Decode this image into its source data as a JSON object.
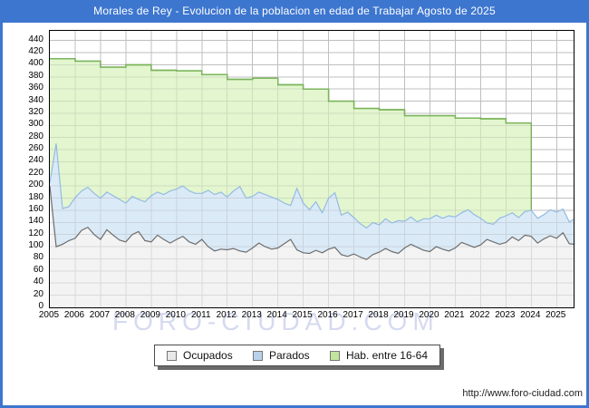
{
  "window": {
    "title": "Morales de Rey - Evolucion de la poblacion en edad de Trabajar Agosto de 2025"
  },
  "watermark_text": "FORO-CIUDAD.COM",
  "footer_url": "http://www.foro-ciudad.com",
  "colors": {
    "frame_blue": "#3d76cf",
    "plot_border": "#000000",
    "grid": "#cfcfcf",
    "hab_fill": "#e3f6cf",
    "hab_line": "#7ab45a",
    "parados_fill": "#dbeaf7",
    "parados_line": "#94bbe2",
    "ocupados_fill": "#f3f3f3",
    "ocupados_line": "#6e6e6e",
    "watermark": "#bbc3e6"
  },
  "legend": {
    "items": [
      {
        "label": "Ocupados",
        "swatch": "#e9e9e9",
        "swatch_border": "#777777"
      },
      {
        "label": "Parados",
        "swatch": "#b8d2ec",
        "swatch_border": "#777777"
      },
      {
        "label": "Hab. entre 16-64",
        "swatch": "#c2e59d",
        "swatch_border": "#777777"
      }
    ]
  },
  "chart_data": {
    "type": "area",
    "title": "Morales de Rey - Evolucion de la poblacion en edad de Trabajar Agosto de 2025",
    "xlabel": "",
    "ylabel": "",
    "x_range": [
      2005,
      2025.67
    ],
    "y_range": [
      0,
      456
    ],
    "x_ticks": [
      2005,
      2006,
      2007,
      2008,
      2009,
      2010,
      2011,
      2012,
      2013,
      2014,
      2015,
      2016,
      2017,
      2018,
      2019,
      2020,
      2021,
      2022,
      2023,
      2024,
      2025
    ],
    "y_ticks": [
      0,
      20,
      40,
      60,
      80,
      100,
      120,
      140,
      160,
      180,
      200,
      220,
      240,
      260,
      280,
      300,
      320,
      340,
      360,
      380,
      400,
      420,
      440
    ],
    "grid": true,
    "legend_position": "bottom-center",
    "x_start": 2005.0,
    "x_step": 0.25,
    "x_last": 2025.67,
    "resolution_note": "values estimated from plot at quarterly resolution; source curve is monthly",
    "series": [
      {
        "name": "Hab. entre 16-64",
        "type": "step-area",
        "years": [
          2005,
          2006,
          2007,
          2008,
          2009,
          2010,
          2011,
          2012,
          2013,
          2014,
          2015,
          2016,
          2017,
          2018,
          2019,
          2020,
          2021,
          2022,
          2023
        ],
        "values": [
          410,
          406,
          396,
          400,
          391,
          390,
          384,
          376,
          378,
          367,
          360,
          340,
          328,
          326,
          316,
          316,
          312,
          311,
          304
        ],
        "drops_to_zero_at": 2024.0,
        "fill": "#e3f6cf",
        "line": "#7ab45a"
      },
      {
        "name": "Ocupados",
        "type": "area",
        "values": [
          200,
          100,
          104,
          110,
          114,
          127,
          132,
          120,
          112,
          128,
          119,
          111,
          108,
          120,
          125,
          110,
          108,
          119,
          112,
          106,
          112,
          117,
          108,
          104,
          112,
          100,
          93,
          96,
          95,
          97,
          93,
          91,
          98,
          106,
          100,
          96,
          98,
          105,
          112,
          95,
          90,
          89,
          94,
          90,
          96,
          99,
          87,
          84,
          88,
          83,
          79,
          87,
          91,
          97,
          92,
          89,
          98,
          104,
          99,
          94,
          92,
          100,
          96,
          93,
          98,
          107,
          103,
          99,
          103,
          112,
          108,
          104,
          107,
          116,
          110,
          119,
          117,
          106,
          113,
          118,
          114,
          123,
          105,
          104
        ],
        "fill": "#f3f3f3",
        "line": "#6e6e6e"
      },
      {
        "name": "Parados",
        "type": "area",
        "stacked_on": "Ocupados",
        "values": [
          5,
          170,
          59,
          56,
          67,
          65,
          66,
          68,
          68,
          62,
          65,
          67,
          64,
          63,
          53,
          64,
          76,
          71,
          74,
          86,
          83,
          83,
          84,
          84,
          76,
          93,
          93,
          94,
          87,
          95,
          106,
          89,
          85,
          84,
          86,
          86,
          80,
          67,
          56,
          101,
          82,
          72,
          80,
          66,
          84,
          90,
          65,
          73,
          60,
          55,
          52,
          53,
          45,
          49,
          47,
          54,
          44,
          45,
          42,
          52,
          54,
          52,
          51,
          58,
          51,
          49,
          58,
          54,
          44,
          27,
          29,
          43,
          44,
          40,
          38,
          39,
          43,
          41,
          40,
          43,
          43,
          39,
          36,
          41
        ],
        "fill": "#dbeaf7",
        "line": "#94bbe2"
      }
    ]
  }
}
